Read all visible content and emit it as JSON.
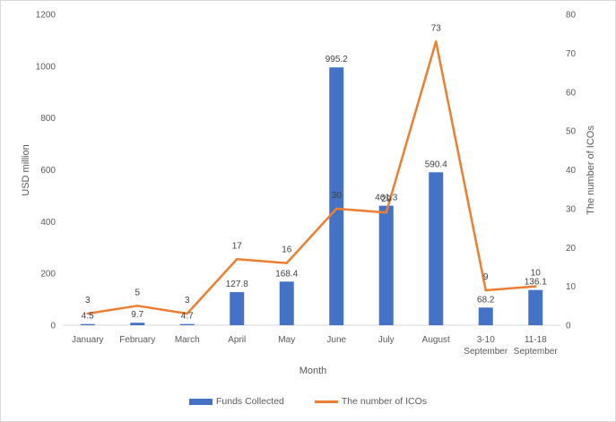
{
  "chart_data": {
    "type": "bar",
    "categories": [
      [
        "January"
      ],
      [
        "February"
      ],
      [
        "March"
      ],
      [
        "April"
      ],
      [
        "May"
      ],
      [
        "June"
      ],
      [
        "July"
      ],
      [
        "August"
      ],
      [
        "3-10",
        "September"
      ],
      [
        "11-18",
        "September"
      ]
    ],
    "series": [
      {
        "name": "Funds Collected",
        "type": "bar",
        "axis": "left",
        "color": "#4472c4",
        "values": [
          4.5,
          9.7,
          4.7,
          127.8,
          168.4,
          995.2,
          461.3,
          590.4,
          68.2,
          136.1
        ],
        "labels": [
          "4.5",
          "9.7",
          "4.7",
          "127.8",
          "168.4",
          "995.2",
          "461.3",
          "590.4",
          "68.2",
          "136.1"
        ]
      },
      {
        "name": "The number of ICOs",
        "type": "line",
        "axis": "right",
        "color": "#ed7d31",
        "values": [
          3,
          5,
          3,
          17,
          16,
          30,
          29,
          73,
          9,
          10
        ],
        "labels": [
          "3",
          "5",
          "3",
          "17",
          "16",
          "30",
          "29",
          "73",
          "9",
          "10"
        ]
      }
    ],
    "xlabel": "Month",
    "ylabel": "USD million",
    "y2label": "The number of ICOs",
    "ylim": [
      0,
      1200
    ],
    "y2lim": [
      0,
      80
    ],
    "yticks": [
      0,
      200,
      400,
      600,
      800,
      1000,
      1200
    ],
    "y2ticks": [
      0,
      10,
      20,
      30,
      40,
      50,
      60,
      70,
      80
    ],
    "grid": false,
    "legend": "bottom"
  },
  "legend": {
    "bar_label": "Funds Collected",
    "line_label": "The number of ICOs"
  }
}
